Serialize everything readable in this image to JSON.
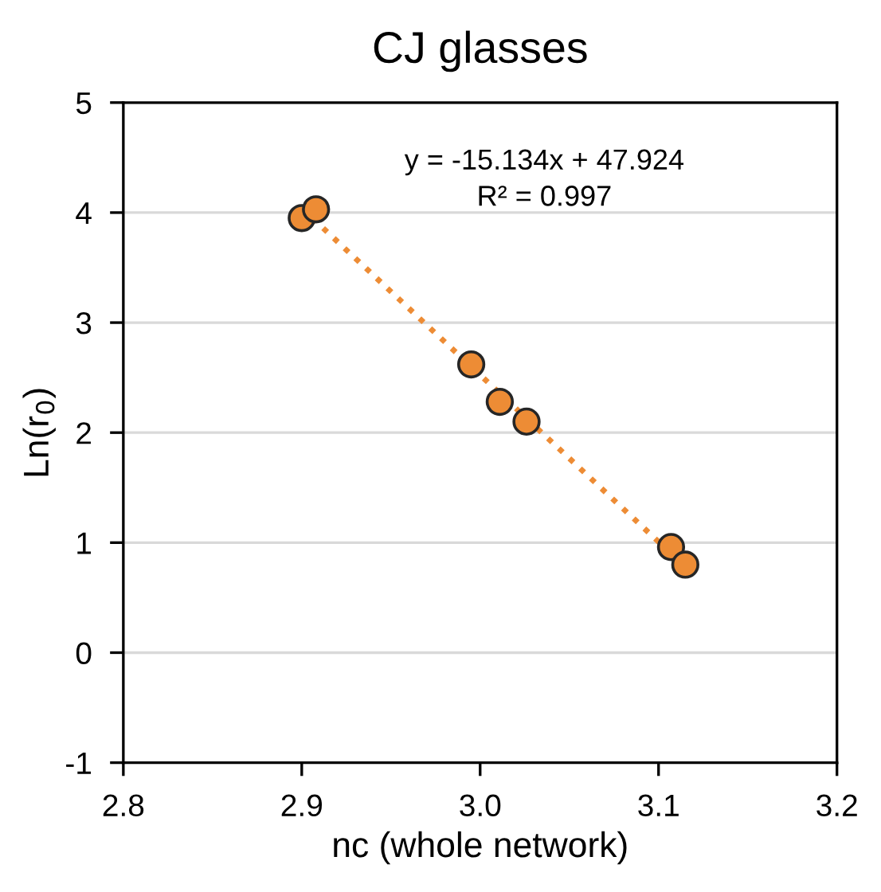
{
  "chart_data": {
    "type": "scatter",
    "title": "CJ glasses",
    "xlabel": "nc (whole network)",
    "ylabel": "Ln(r$_{0}$)",
    "xlim": [
      2.8,
      3.2
    ],
    "xticks": [
      {
        "value": 2.8,
        "label": "2.8"
      },
      {
        "value": 2.9,
        "label": "2.9"
      },
      {
        "value": 3.0,
        "label": "3.0"
      },
      {
        "value": 3.1,
        "label": "3.1"
      },
      {
        "value": 3.2,
        "label": "3.2"
      }
    ],
    "ylim": [
      -1,
      5
    ],
    "yticks": [
      -1,
      0,
      1,
      2,
      3,
      4,
      5
    ],
    "grid": "y",
    "marker": "circle",
    "annotations": [
      "y = -15.134x + 47.924",
      "R² = 0.997"
    ],
    "series": [
      {
        "color": "#ed8c35",
        "x": [
          2.9,
          2.908,
          2.995,
          3.011,
          3.026,
          3.107,
          3.115
        ],
        "values": [
          3.95,
          4.03,
          2.62,
          2.28,
          2.1,
          0.96,
          0.8
        ]
      },
      {
        "type": "line",
        "color": "#ed8c35",
        "line_style": "dotted",
        "marker": "none",
        "x": [
          2.9,
          3.115
        ],
        "values": [
          4.04,
          0.78
        ]
      }
    ]
  }
}
